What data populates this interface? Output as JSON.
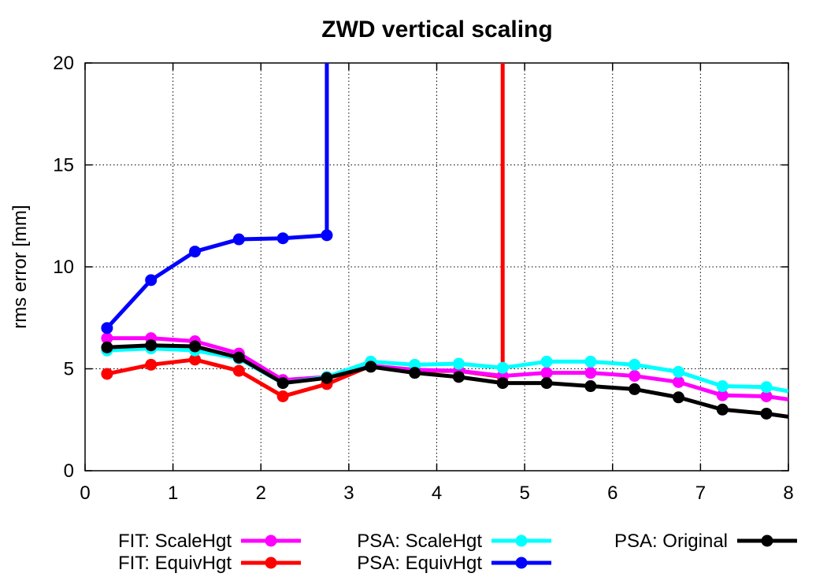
{
  "chart_data": {
    "type": "line",
    "title": "ZWD vertical scaling",
    "xlabel": "",
    "ylabel": "rms error [mm]",
    "xlim": [
      0,
      8
    ],
    "ylim": [
      0,
      20
    ],
    "x_ticks": [
      "0",
      "1",
      "2",
      "3",
      "4",
      "5",
      "6",
      "7",
      "8"
    ],
    "y_ticks": [
      "0",
      "5",
      "10",
      "15",
      "20"
    ],
    "grid": true,
    "legend_position": "bottom",
    "series": [
      {
        "name": "FIT: ScaleHgt",
        "color": "#ff00ff",
        "x": [
          0.25,
          0.75,
          1.25,
          1.75,
          2.25,
          2.75,
          3.25,
          3.75,
          4.25,
          4.75,
          5.25,
          5.75,
          6.25,
          6.75,
          7.25,
          7.75,
          8.0
        ],
        "values": [
          6.5,
          6.5,
          6.35,
          5.75,
          4.45,
          4.6,
          5.15,
          4.95,
          4.9,
          4.65,
          4.8,
          4.8,
          4.65,
          4.35,
          3.7,
          3.65,
          3.5
        ]
      },
      {
        "name": "FIT: EquivHgt",
        "color": "#ff0000",
        "x": [
          0.25,
          0.75,
          1.25,
          1.75,
          2.25,
          2.75,
          3.25,
          3.75,
          4.25,
          4.75,
          4.75
        ],
        "values": [
          4.75,
          5.2,
          5.45,
          4.9,
          3.65,
          4.25,
          5.15,
          4.9,
          4.9,
          4.6,
          20
        ]
      },
      {
        "name": "PSA: ScaleHgt",
        "color": "#00ffff",
        "x": [
          0.25,
          0.75,
          1.25,
          1.75,
          2.25,
          2.75,
          3.25,
          3.75,
          4.25,
          4.75,
          5.25,
          5.75,
          6.25,
          6.75,
          7.25,
          7.75,
          8.0
        ],
        "values": [
          5.9,
          6.0,
          5.9,
          5.5,
          4.3,
          4.6,
          5.35,
          5.2,
          5.25,
          5.05,
          5.35,
          5.35,
          5.2,
          4.85,
          4.15,
          4.1,
          3.9
        ]
      },
      {
        "name": "PSA: EquivHgt",
        "color": "#0000ff",
        "x": [
          0.25,
          0.75,
          1.25,
          1.75,
          2.25,
          2.75,
          2.75
        ],
        "values": [
          7.0,
          9.35,
          10.75,
          11.35,
          11.4,
          11.55,
          20
        ]
      },
      {
        "name": "PSA: Original",
        "color": "#000000",
        "x": [
          0.25,
          0.75,
          1.25,
          1.75,
          2.25,
          2.75,
          3.25,
          3.75,
          4.25,
          4.75,
          5.25,
          5.75,
          6.25,
          6.75,
          7.25,
          7.75,
          8.0
        ],
        "values": [
          6.05,
          6.15,
          6.1,
          5.55,
          4.3,
          4.55,
          5.1,
          4.8,
          4.6,
          4.3,
          4.3,
          4.15,
          4.0,
          3.6,
          3.0,
          2.8,
          2.65
        ]
      }
    ]
  }
}
